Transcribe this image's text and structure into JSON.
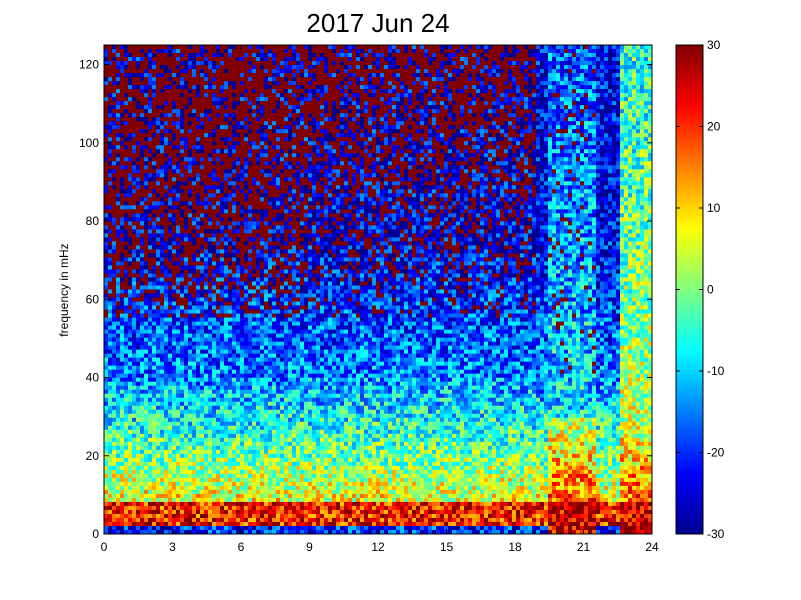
{
  "chart_data": {
    "type": "heatmap",
    "title": "2017 Jun 24",
    "xlabel": "",
    "ylabel": "frequency in mHz",
    "xlim": [
      0,
      24
    ],
    "ylim": [
      0,
      125
    ],
    "x_ticks": [
      "0",
      "3",
      "6",
      "9",
      "12",
      "15",
      "18",
      "21",
      "24"
    ],
    "y_ticks": [
      "0",
      "20",
      "40",
      "60",
      "80",
      "100",
      "120"
    ],
    "colorbar": {
      "range": [
        -30,
        30
      ],
      "ticks": [
        "30",
        "20",
        "10",
        "0",
        "-10",
        "-20",
        "-30"
      ],
      "colormap": "jet"
    },
    "colormap_colors": [
      "#00008f",
      "#0000ff",
      "#00ffff",
      "#ffff00",
      "#ff0000",
      "#800000"
    ],
    "grid": false
  }
}
